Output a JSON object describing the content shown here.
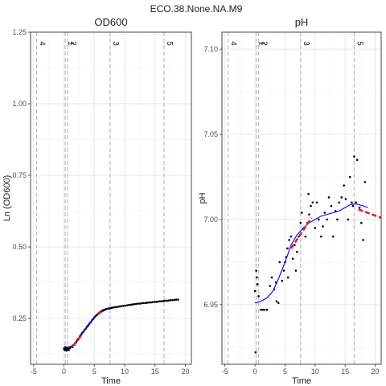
{
  "figure": {
    "title": "ECO.38.None.NA.M9"
  },
  "chart_data": [
    {
      "type": "scatter",
      "title": "OD600",
      "xlabel": "Time",
      "ylabel": "Ln (OD600)",
      "xlim": [
        -5.5,
        21
      ],
      "ylim": [
        0.09,
        1.25
      ],
      "x_ticks": [
        -5,
        0,
        5,
        10,
        15,
        20
      ],
      "y_ticks": [
        0.25,
        0.5,
        0.75,
        1.0,
        1.25
      ],
      "y_tick_labels": [
        "0.25",
        "0.50",
        "0.75",
        "1.00",
        "1.25"
      ],
      "grid": true,
      "vlines": [
        {
          "x": -4.5,
          "label": "4"
        },
        {
          "x": 0.2,
          "label": "1"
        },
        {
          "x": 0.6,
          "label": "2"
        },
        {
          "x": 7.6,
          "label": "3"
        },
        {
          "x": 16.5,
          "label": "5"
        }
      ],
      "points": [
        [
          0.0,
          0.145
        ],
        [
          0.1,
          0.14
        ],
        [
          0.2,
          0.15
        ],
        [
          0.3,
          0.143
        ],
        [
          0.4,
          0.138
        ],
        [
          0.5,
          0.148
        ],
        [
          0.6,
          0.142
        ],
        [
          0.7,
          0.147
        ],
        [
          0.8,
          0.14
        ],
        [
          0.9,
          0.15
        ],
        [
          1.0,
          0.146
        ],
        [
          1.2,
          0.152
        ],
        [
          1.4,
          0.15
        ],
        [
          1.6,
          0.158
        ],
        [
          1.8,
          0.163
        ],
        [
          2.0,
          0.168
        ],
        [
          2.2,
          0.175
        ],
        [
          2.4,
          0.18
        ],
        [
          2.6,
          0.187
        ],
        [
          2.8,
          0.193
        ],
        [
          3.0,
          0.199
        ],
        [
          3.2,
          0.204
        ],
        [
          3.4,
          0.21
        ],
        [
          3.6,
          0.215
        ],
        [
          3.8,
          0.221
        ],
        [
          4.0,
          0.226
        ],
        [
          4.2,
          0.232
        ],
        [
          4.4,
          0.237
        ],
        [
          4.6,
          0.243
        ],
        [
          4.8,
          0.248
        ],
        [
          5.0,
          0.253
        ],
        [
          5.2,
          0.258
        ],
        [
          5.4,
          0.262
        ],
        [
          5.6,
          0.266
        ],
        [
          5.8,
          0.27
        ],
        [
          6.0,
          0.273
        ],
        [
          6.2,
          0.276
        ],
        [
          6.4,
          0.278
        ],
        [
          6.6,
          0.28
        ],
        [
          6.8,
          0.282
        ],
        [
          7.0,
          0.283
        ],
        [
          7.2,
          0.284
        ],
        [
          7.4,
          0.285
        ],
        [
          7.6,
          0.286
        ],
        [
          7.8,
          0.287
        ],
        [
          8.0,
          0.288
        ],
        [
          8.3,
          0.289
        ],
        [
          8.6,
          0.29
        ],
        [
          8.9,
          0.291
        ],
        [
          9.2,
          0.292
        ],
        [
          9.5,
          0.293
        ],
        [
          9.8,
          0.294
        ],
        [
          10.1,
          0.295
        ],
        [
          10.4,
          0.296
        ],
        [
          10.7,
          0.297
        ],
        [
          11.0,
          0.298
        ],
        [
          11.3,
          0.299
        ],
        [
          11.6,
          0.3
        ],
        [
          11.9,
          0.301
        ],
        [
          12.2,
          0.302
        ],
        [
          12.5,
          0.302
        ],
        [
          12.8,
          0.303
        ],
        [
          13.1,
          0.304
        ],
        [
          13.4,
          0.304
        ],
        [
          13.7,
          0.305
        ],
        [
          14.0,
          0.306
        ],
        [
          14.3,
          0.306
        ],
        [
          14.6,
          0.307
        ],
        [
          14.9,
          0.308
        ],
        [
          15.2,
          0.308
        ],
        [
          15.5,
          0.309
        ],
        [
          15.8,
          0.31
        ],
        [
          16.1,
          0.31
        ],
        [
          16.4,
          0.311
        ],
        [
          16.7,
          0.312
        ],
        [
          17.0,
          0.312
        ],
        [
          17.3,
          0.313
        ],
        [
          17.6,
          0.314
        ],
        [
          17.9,
          0.314
        ],
        [
          18.2,
          0.315
        ],
        [
          18.5,
          0.316
        ],
        [
          18.8,
          0.316
        ]
      ],
      "fit_line": [
        [
          0,
          0.148
        ],
        [
          0.5,
          0.146
        ],
        [
          1,
          0.15
        ],
        [
          1.5,
          0.156
        ],
        [
          2,
          0.165
        ],
        [
          2.5,
          0.18
        ],
        [
          3,
          0.197
        ],
        [
          4,
          0.225
        ],
        [
          5,
          0.252
        ],
        [
          6,
          0.27
        ],
        [
          7,
          0.281
        ],
        [
          7.5,
          0.284
        ]
      ],
      "red_segments": [
        [
          [
            1.6,
            0.155
          ],
          [
            3.0,
            0.195
          ]
        ],
        [
          [
            5.6,
            0.265
          ],
          [
            6.6,
            0.279
          ]
        ]
      ],
      "colors": {
        "points": "#000000",
        "fit": "#0000ff",
        "segment": "#e8221f",
        "vline": "#bdbdbd"
      }
    },
    {
      "type": "scatter",
      "title": "pH",
      "xlabel": "Time",
      "ylabel": "pH",
      "xlim": [
        -5.5,
        21
      ],
      "ylim": [
        6.915,
        7.11
      ],
      "x_ticks": [
        -5,
        0,
        5,
        10,
        15,
        20
      ],
      "y_ticks": [
        6.95,
        7.0,
        7.05,
        7.1
      ],
      "y_tick_labels": [
        "6.95",
        "7.00",
        "7.05",
        "7.10"
      ],
      "grid": true,
      "vlines": [
        {
          "x": -4.5,
          "label": "4"
        },
        {
          "x": 0.2,
          "label": "1"
        },
        {
          "x": 0.6,
          "label": "2"
        },
        {
          "x": 7.6,
          "label": "3"
        },
        {
          "x": 16.5,
          "label": "5"
        }
      ],
      "points": [
        [
          0.1,
          6.922
        ],
        [
          0.0,
          6.958
        ],
        [
          0.2,
          6.97
        ],
        [
          0.3,
          6.966
        ],
        [
          0.4,
          6.962
        ],
        [
          0.6,
          6.955
        ],
        [
          1.0,
          6.947
        ],
        [
          1.3,
          6.947
        ],
        [
          1.6,
          6.947
        ],
        [
          2.0,
          6.947
        ],
        [
          2.5,
          6.961
        ],
        [
          2.8,
          6.966
        ],
        [
          3.2,
          6.959
        ],
        [
          3.5,
          6.963
        ],
        [
          3.6,
          6.952
        ],
        [
          3.9,
          6.951
        ],
        [
          4.1,
          6.975
        ],
        [
          4.5,
          6.964
        ],
        [
          4.8,
          6.97
        ],
        [
          5.0,
          6.975
        ],
        [
          5.2,
          6.978
        ],
        [
          5.4,
          6.983
        ],
        [
          5.5,
          6.966
        ],
        [
          5.7,
          6.988
        ],
        [
          6.0,
          6.99
        ],
        [
          6.3,
          6.977
        ],
        [
          6.6,
          6.985
        ],
        [
          6.8,
          6.97
        ],
        [
          7.0,
          6.981
        ],
        [
          7.3,
          6.99
        ],
        [
          7.6,
          6.998
        ],
        [
          7.8,
          7.004
        ],
        [
          8.1,
          6.995
        ],
        [
          8.4,
          6.99
        ],
        [
          8.7,
          6.998
        ],
        [
          9.0,
          7.003
        ],
        [
          9.3,
          7.008
        ],
        [
          9.6,
          7.01
        ],
        [
          10.0,
          6.995
        ],
        [
          10.3,
          7.01
        ],
        [
          10.6,
          7.0
        ],
        [
          11.0,
          6.99
        ],
        [
          11.3,
          6.996
        ],
        [
          11.6,
          7.004
        ],
        [
          12.0,
          7.0
        ],
        [
          12.3,
          7.013
        ],
        [
          12.7,
          7.008
        ],
        [
          13.0,
          6.99
        ],
        [
          13.4,
          7.005
        ],
        [
          13.7,
          7.0
        ],
        [
          14.0,
          7.01
        ],
        [
          14.4,
          7.013
        ],
        [
          14.8,
          7.02
        ],
        [
          15.1,
          7.012
        ],
        [
          15.5,
          7.0
        ],
        [
          15.8,
          7.025
        ],
        [
          16.1,
          7.01
        ],
        [
          16.3,
          7.008
        ],
        [
          16.5,
          7.037
        ],
        [
          16.8,
          7.01
        ],
        [
          17.0,
          7.035
        ],
        [
          17.4,
          7.007
        ],
        [
          17.7,
          6.998
        ],
        [
          18.0,
          6.988
        ],
        [
          18.3,
          7.022
        ],
        [
          8.9,
          7.015
        ]
      ],
      "fit_line": [
        [
          0,
          6.951
        ],
        [
          1,
          6.952
        ],
        [
          2,
          6.954
        ],
        [
          3,
          6.958
        ],
        [
          4,
          6.966
        ],
        [
          5,
          6.975
        ],
        [
          6,
          6.985
        ],
        [
          7,
          6.991
        ],
        [
          8,
          6.995
        ],
        [
          9,
          6.998
        ],
        [
          10,
          7.0
        ],
        [
          11,
          7.002
        ],
        [
          12,
          7.003
        ],
        [
          13,
          7.004
        ],
        [
          14,
          7.005
        ],
        [
          15,
          7.007
        ],
        [
          16,
          7.009
        ],
        [
          17,
          7.009
        ],
        [
          18,
          7.008
        ],
        [
          18.8,
          7.007
        ]
      ],
      "red_segments": [
        [
          [
            6.0,
            6.983
          ],
          [
            9.4,
            7.001
          ]
        ],
        [
          [
            17.2,
            7.006
          ],
          [
            21.0,
            7.001
          ]
        ]
      ],
      "colors": {
        "points": "#000000",
        "fit": "#0000ff",
        "segment": "#e8221f",
        "vline": "#bdbdbd"
      }
    }
  ]
}
